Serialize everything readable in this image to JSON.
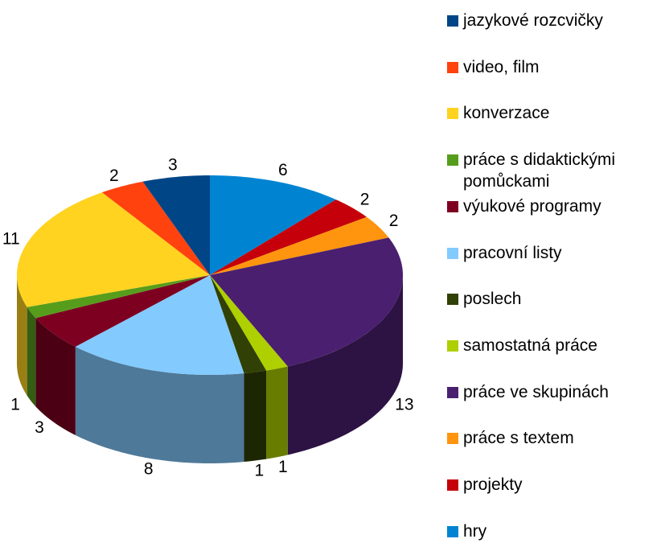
{
  "chart_data": {
    "type": "pie3d",
    "categories": [
      "jazykové rozcvičky",
      "video, film",
      "konverzace",
      "práce s didaktickými pomůckami",
      "výukové programy",
      "pracovní listy",
      "poslech",
      "samostatná práce",
      "práce ve skupinách",
      "práce s textem",
      "projekty",
      "hry"
    ],
    "values": [
      3,
      2,
      11,
      1,
      3,
      8,
      1,
      1,
      13,
      2,
      2,
      6
    ],
    "colors": [
      "#004586",
      "#ff420e",
      "#ffd320",
      "#579d1c",
      "#7e0021",
      "#83caff",
      "#314004",
      "#aecf00",
      "#4b1f6f",
      "#ff950e",
      "#c5000b",
      "#0084d1"
    ]
  }
}
